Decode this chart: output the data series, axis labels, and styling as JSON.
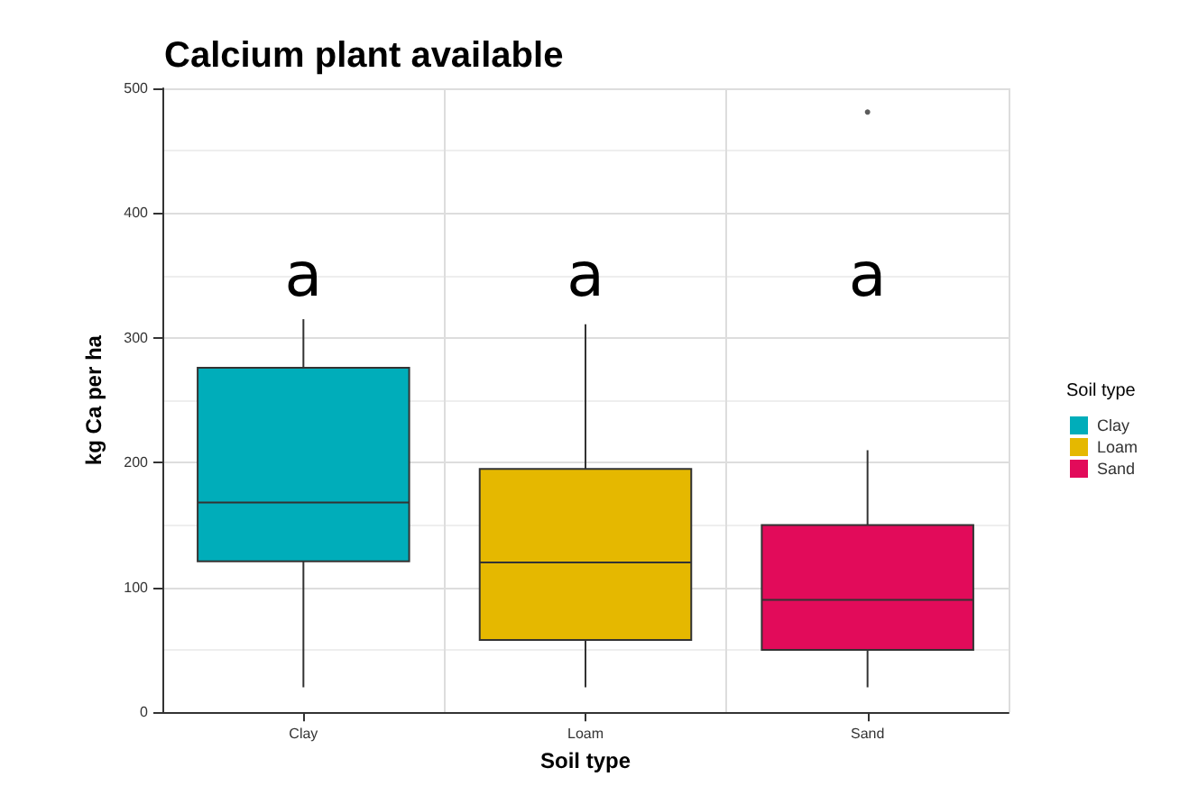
{
  "chart_data": {
    "type": "box",
    "title": "Calcium plant available",
    "xlabel": "Soil type",
    "ylabel": "kg Ca per ha",
    "legend_title": "Soil type",
    "categories": [
      "Clay",
      "Loam",
      "Sand"
    ],
    "series": [
      {
        "name": "Clay",
        "color": "#00adba",
        "boxes": [
          {
            "low": 20,
            "q1": 121,
            "median": 168,
            "q3": 276,
            "high": 315
          },
          null,
          null
        ]
      },
      {
        "name": "Loam",
        "color": "#e5b800",
        "boxes": [
          null,
          {
            "low": 20,
            "q1": 58,
            "median": 120,
            "q3": 195,
            "high": 311
          },
          null
        ]
      },
      {
        "name": "Sand",
        "color": "#e20b5a",
        "boxes": [
          null,
          null,
          {
            "low": 20,
            "q1": 50,
            "median": 90,
            "q3": 150,
            "high": 210,
            "outliers": [
              481
            ]
          }
        ]
      }
    ],
    "annotations": [
      "a",
      "a",
      "a"
    ],
    "ylim": [
      0,
      500
    ],
    "yticks": [
      0,
      100,
      200,
      300,
      400,
      500
    ],
    "grid": true,
    "legend": "right"
  }
}
